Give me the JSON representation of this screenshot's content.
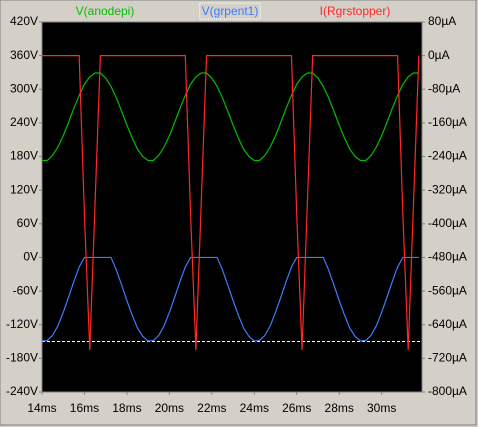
{
  "chart_data": {
    "type": "line",
    "x": [
      14,
      14.25,
      14.5,
      14.75,
      15,
      15.25,
      15.5,
      15.75,
      16,
      16.25,
      16.5,
      16.75,
      17,
      17.25,
      17.5,
      17.75,
      18,
      18.25,
      18.5,
      18.75,
      19,
      19.25,
      19.5,
      19.75,
      20,
      20.25,
      20.5,
      20.75,
      21,
      21.25,
      21.5,
      21.75,
      22,
      22.25,
      22.5,
      22.75,
      23,
      23.25,
      23.5,
      23.75,
      24,
      24.25,
      24.5,
      24.75,
      25,
      25.25,
      25.5,
      25.75,
      26,
      26.25,
      26.5,
      26.75,
      27,
      27.25,
      27.5,
      27.75,
      28,
      28.25,
      28.5,
      28.75,
      29,
      29.25,
      29.5,
      29.75,
      30,
      30.25,
      30.5,
      30.75,
      31,
      31.25,
      31.5,
      31.75
    ],
    "series": [
      {
        "name": "V(anodepi)",
        "color": "#00c000",
        "axis": "y",
        "values": [
          173,
          173,
          182,
          197,
          217,
          241,
          266,
          289,
          309,
          322,
          329,
          329,
          320,
          305,
          285,
          261,
          236,
          213,
          193,
          180,
          173,
          173,
          182,
          197,
          217,
          241,
          266,
          289,
          309,
          322,
          329,
          329,
          320,
          305,
          285,
          261,
          236,
          213,
          193,
          180,
          173,
          173,
          182,
          197,
          217,
          241,
          266,
          289,
          309,
          322,
          329,
          329,
          320,
          305,
          285,
          261,
          236,
          213,
          193,
          180,
          173,
          173,
          182,
          197,
          217,
          241,
          266,
          289,
          309,
          322,
          329,
          329
        ]
      },
      {
        "name": "V(grpent1)",
        "color": "#3c7cff",
        "axis": "y",
        "values": [
          -149,
          -148,
          -139,
          -122,
          -98,
          -71,
          -43,
          -17,
          0,
          0,
          0,
          0,
          0,
          0,
          -22,
          -49,
          -77,
          -103,
          -126,
          -141,
          -149,
          -148,
          -139,
          -122,
          -98,
          -71,
          -43,
          -17,
          0,
          0,
          0,
          0,
          0,
          0,
          -22,
          -49,
          -77,
          -103,
          -126,
          -141,
          -149,
          -148,
          -139,
          -122,
          -98,
          -71,
          -43,
          -17,
          0,
          0,
          0,
          0,
          0,
          0,
          -22,
          -49,
          -77,
          -103,
          -126,
          -141,
          -149,
          -148,
          -139,
          -122,
          -98,
          -71,
          -43,
          -17,
          0,
          0,
          0,
          0
        ]
      },
      {
        "name": "I(Rgrstopper)",
        "color": "#ff2828",
        "axis": "y2",
        "values": [
          0,
          0,
          0,
          0,
          0,
          0,
          0,
          0,
          -380,
          -700,
          -350,
          0,
          0,
          0,
          0,
          0,
          0,
          0,
          0,
          0,
          0,
          0,
          0,
          0,
          0,
          0,
          0,
          0,
          -380,
          -700,
          -350,
          0,
          0,
          0,
          0,
          0,
          0,
          0,
          0,
          0,
          0,
          0,
          0,
          0,
          0,
          0,
          0,
          0,
          -380,
          -700,
          -350,
          0,
          0,
          0,
          0,
          0,
          0,
          0,
          0,
          0,
          0,
          0,
          0,
          0,
          0,
          0,
          0,
          0,
          -380,
          -700,
          -350,
          0
        ]
      }
    ],
    "xlim": [
      14,
      31.9
    ],
    "xticks": [
      {
        "value": 14,
        "label": "14ms"
      },
      {
        "value": 16,
        "label": "16ms"
      },
      {
        "value": 18,
        "label": "18ms"
      },
      {
        "value": 20,
        "label": "20ms"
      },
      {
        "value": 22,
        "label": "22ms"
      },
      {
        "value": 24,
        "label": "24ms"
      },
      {
        "value": 26,
        "label": "26ms"
      },
      {
        "value": 28,
        "label": "28ms"
      },
      {
        "value": 30,
        "label": "30ms"
      }
    ],
    "ylim": [
      -240,
      420
    ],
    "yticks": [
      {
        "value": 420,
        "label": "420V"
      },
      {
        "value": 360,
        "label": "360V"
      },
      {
        "value": 300,
        "label": "300V"
      },
      {
        "value": 240,
        "label": "240V"
      },
      {
        "value": 180,
        "label": "180V"
      },
      {
        "value": 120,
        "label": "120V"
      },
      {
        "value": 60,
        "label": "60V"
      },
      {
        "value": 0,
        "label": "0V"
      },
      {
        "value": -60,
        "label": "-60V"
      },
      {
        "value": -120,
        "label": "-120V"
      },
      {
        "value": -180,
        "label": "-180V"
      },
      {
        "value": -240,
        "label": "-240V"
      }
    ],
    "y2lim": [
      -800,
      80
    ],
    "y2ticks": [
      {
        "value": 80,
        "label": "80µA"
      },
      {
        "value": 0,
        "label": "0µA"
      },
      {
        "value": -80,
        "label": "-80µA"
      },
      {
        "value": -160,
        "label": "-160µA"
      },
      {
        "value": -240,
        "label": "-240µA"
      },
      {
        "value": -320,
        "label": "-320µA"
      },
      {
        "value": -400,
        "label": "-400µA"
      },
      {
        "value": -480,
        "label": "-480µA"
      },
      {
        "value": -560,
        "label": "-560µA"
      },
      {
        "value": -640,
        "label": "-640µA"
      },
      {
        "value": -720,
        "label": "-720µA"
      },
      {
        "value": -800,
        "label": "-800µA"
      }
    ],
    "cursor_y": -150,
    "grid": false
  }
}
